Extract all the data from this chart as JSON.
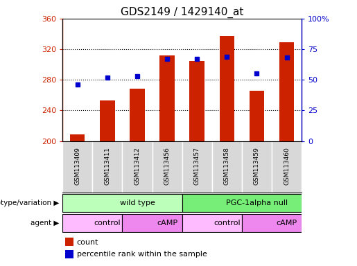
{
  "title": "GDS2149 / 1429140_at",
  "samples": [
    "GSM113409",
    "GSM113411",
    "GSM113412",
    "GSM113456",
    "GSM113457",
    "GSM113458",
    "GSM113459",
    "GSM113460"
  ],
  "counts": [
    209,
    253,
    268,
    312,
    305,
    337,
    266,
    329
  ],
  "percentile_ranks": [
    46,
    52,
    53,
    67,
    67,
    69,
    55,
    68
  ],
  "ymin": 200,
  "ymax": 360,
  "yticks": [
    200,
    240,
    280,
    320,
    360
  ],
  "right_yticks": [
    0,
    25,
    50,
    75,
    100
  ],
  "bar_color": "#cc2200",
  "dot_color": "#0000cc",
  "bar_width": 0.5,
  "genotype_groups": [
    {
      "label": "wild type",
      "start": 0,
      "end": 4,
      "color": "#bbffbb"
    },
    {
      "label": "PGC-1alpha null",
      "start": 4,
      "end": 8,
      "color": "#77ee77"
    }
  ],
  "agent_groups": [
    {
      "label": "control",
      "start": 0,
      "end": 2,
      "color": "#ffbbff"
    },
    {
      "label": "cAMP",
      "start": 2,
      "end": 4,
      "color": "#ee88ee"
    },
    {
      "label": "control",
      "start": 4,
      "end": 6,
      "color": "#ffbbff"
    },
    {
      "label": "cAMP",
      "start": 6,
      "end": 8,
      "color": "#ee88ee"
    }
  ],
  "legend_count_label": "count",
  "legend_pct_label": "percentile rank within the sample",
  "genotype_label": "genotype/variation",
  "agent_label": "agent"
}
